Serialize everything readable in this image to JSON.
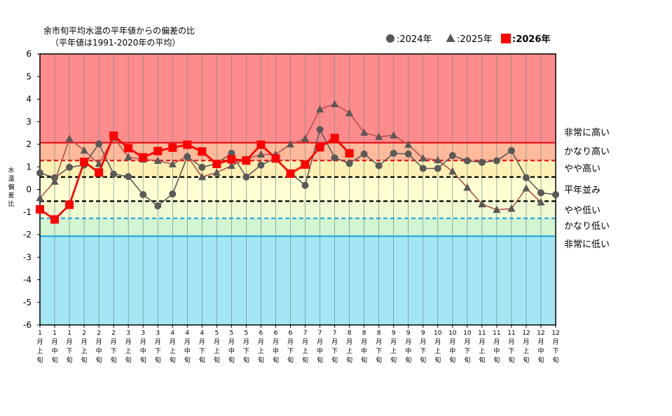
{
  "chart_data": {
    "type": "line",
    "title": [
      "余市旬平均水温の平年値からの偏差の比",
      "（平年値は1991-2020年の平均）"
    ],
    "ylabel": "水温偏差比",
    "ylim": [
      -6,
      6
    ],
    "yticks": [
      6,
      5,
      4,
      3,
      2,
      1,
      0,
      -1,
      -2,
      -3,
      -4,
      -5,
      -6
    ],
    "x_tick_labels": [
      [
        "1",
        "月",
        "上",
        "旬"
      ],
      [
        "1",
        "月",
        "中",
        "旬"
      ],
      [
        "1",
        "月",
        "下",
        "旬"
      ],
      [
        "2",
        "月",
        "上",
        "旬"
      ],
      [
        "2",
        "月",
        "中",
        "旬"
      ],
      [
        "2",
        "月",
        "下",
        "旬"
      ],
      [
        "3",
        "月",
        "上",
        "旬"
      ],
      [
        "3",
        "月",
        "中",
        "旬"
      ],
      [
        "3",
        "月",
        "下",
        "旬"
      ],
      [
        "4",
        "月",
        "上",
        "旬"
      ],
      [
        "4",
        "月",
        "中",
        "旬"
      ],
      [
        "4",
        "月",
        "下",
        "旬"
      ],
      [
        "5",
        "月",
        "上",
        "旬"
      ],
      [
        "5",
        "月",
        "中",
        "旬"
      ],
      [
        "5",
        "月",
        "下",
        "旬"
      ],
      [
        "6",
        "月",
        "上",
        "旬"
      ],
      [
        "6",
        "月",
        "中",
        "旬"
      ],
      [
        "6",
        "月",
        "下",
        "旬"
      ],
      [
        "7",
        "月",
        "上",
        "旬"
      ],
      [
        "7",
        "月",
        "中",
        "旬"
      ],
      [
        "7",
        "月",
        "下",
        "旬"
      ],
      [
        "8",
        "月",
        "上",
        "旬"
      ],
      [
        "8",
        "月",
        "中",
        "旬"
      ],
      [
        "8",
        "月",
        "下",
        "旬"
      ],
      [
        "9",
        "月",
        "上",
        "旬"
      ],
      [
        "9",
        "月",
        "中",
        "旬"
      ],
      [
        "9",
        "月",
        "下",
        "旬"
      ],
      [
        "10",
        "月",
        "上",
        "旬"
      ],
      [
        "10",
        "月",
        "中",
        "旬"
      ],
      [
        "10",
        "月",
        "下",
        "旬"
      ],
      [
        "11",
        "月",
        "上",
        "旬"
      ],
      [
        "11",
        "月",
        "中",
        "旬"
      ],
      [
        "11",
        "月",
        "下",
        "旬"
      ],
      [
        "12",
        "月",
        "上",
        "旬"
      ],
      [
        "12",
        "月",
        "中",
        "旬"
      ],
      [
        "12",
        "月",
        "下",
        "旬"
      ]
    ],
    "thresholds": [
      {
        "value": 2.07,
        "color": "#e8141c",
        "dash": false
      },
      {
        "value": 1.28,
        "color": "#e8141c",
        "dash": true
      },
      {
        "value": 0.55,
        "color": "#000000",
        "dash": true
      },
      {
        "value": -0.52,
        "color": "#000000",
        "dash": true
      },
      {
        "value": -1.28,
        "color": "#28aadc",
        "dash": true
      },
      {
        "value": -2.07,
        "color": "#28aadc",
        "dash": false
      }
    ],
    "zones": [
      {
        "from": 2.07,
        "to": 6,
        "color": "#ff8c8c"
      },
      {
        "from": 1.28,
        "to": 2.07,
        "color": "#ffb99b"
      },
      {
        "from": 0.55,
        "to": 1.28,
        "color": "#fff0b4"
      },
      {
        "from": -0.52,
        "to": 0.55,
        "color": "#ffffd2"
      },
      {
        "from": -1.28,
        "to": -0.52,
        "color": "#f0fad2"
      },
      {
        "from": -2.07,
        "to": -1.28,
        "color": "#d2f5d2"
      },
      {
        "from": -6,
        "to": -2.07,
        "color": "#a5e6f5"
      }
    ],
    "zone_labels": [
      {
        "text": "非常に高い",
        "value": 2.55
      },
      {
        "text": "かなり高い",
        "value": 1.7
      },
      {
        "text": "やや高い",
        "value": 0.95
      },
      {
        "text": "平年並み",
        "value": 0.0
      },
      {
        "text": "やや低い",
        "value": -0.9
      },
      {
        "text": "かなり低い",
        "value": -1.6
      },
      {
        "text": "非常に低い",
        "value": -2.4
      }
    ],
    "series": [
      {
        "name": "2024年",
        "legend": "●:2024年",
        "marker": "circle",
        "color": "#595959",
        "values": [
          0.73,
          0.52,
          0.98,
          1.08,
          2.02,
          0.68,
          0.57,
          -0.23,
          -0.73,
          -0.2,
          1.45,
          0.98,
          1.15,
          1.6,
          0.55,
          1.08,
          1.38,
          0.73,
          0.18,
          2.65,
          1.4,
          1.15,
          1.57,
          1.05,
          1.6,
          1.57,
          0.93,
          0.93,
          1.5,
          1.27,
          1.2,
          1.27,
          1.72,
          0.52,
          -0.15,
          -0.23
        ]
      },
      {
        "name": "2025年",
        "legend": "▲:2025年",
        "marker": "triangle",
        "color": "#595959",
        "line_color": "#b45050",
        "values": [
          -0.38,
          0.35,
          2.25,
          1.73,
          1.13,
          2.3,
          1.43,
          1.33,
          1.27,
          1.12,
          1.48,
          0.55,
          0.75,
          1.05,
          1.35,
          1.55,
          1.55,
          2.0,
          2.25,
          3.55,
          3.78,
          3.38,
          2.52,
          2.33,
          2.4,
          1.98,
          1.38,
          1.3,
          0.8,
          0.08,
          -0.65,
          -0.9,
          -0.85,
          0.05,
          -0.57,
          null
        ]
      },
      {
        "name": "2026年",
        "legend": "■:2026年",
        "marker": "square",
        "color": "#ff0000",
        "values": [
          -0.88,
          -1.33,
          -0.68,
          1.22,
          0.75,
          2.38,
          1.83,
          1.42,
          1.7,
          1.85,
          1.98,
          1.68,
          1.13,
          1.33,
          1.28,
          1.98,
          1.37,
          0.7,
          1.1,
          1.87,
          2.28,
          1.6,
          null,
          null,
          null,
          null,
          null,
          null,
          null,
          null,
          null,
          null,
          null,
          null,
          null,
          null
        ]
      }
    ]
  }
}
